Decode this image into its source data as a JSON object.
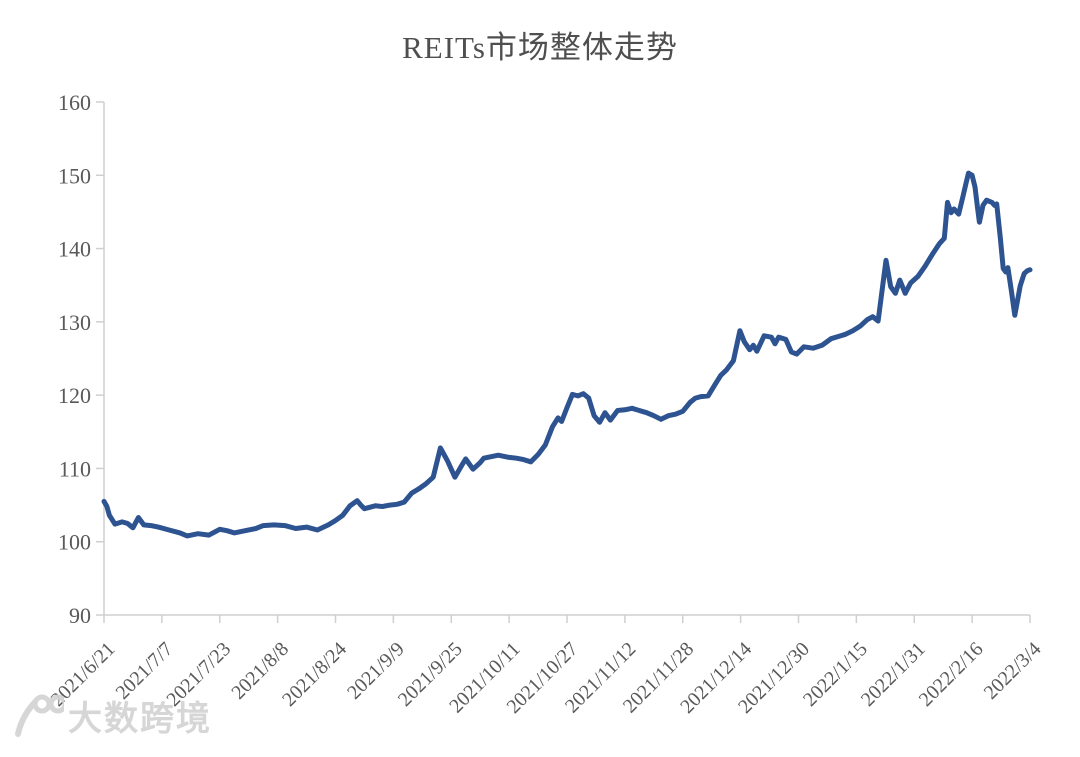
{
  "title": "REITs市场整体走势",
  "watermark": {
    "logo": "100-logo",
    "text": "大数跨境"
  },
  "colors": {
    "line": "#2d5391",
    "axis": "#cfcfcf",
    "tick_label": "#595959",
    "title": "#4f4f4f",
    "watermark": "#d4d4d4"
  },
  "chart_data": {
    "type": "line",
    "title": "REITs市场整体走势",
    "xlabel": "",
    "ylabel": "",
    "grid": false,
    "legend": null,
    "ylim": [
      90,
      160
    ],
    "y_ticks": [
      90,
      100,
      110,
      120,
      130,
      140,
      150,
      160
    ],
    "x_domain_days": [
      0,
      256
    ],
    "x_ticks": [
      {
        "day": 0,
        "label": "2021/6/21"
      },
      {
        "day": 16,
        "label": "2021/7/7"
      },
      {
        "day": 32,
        "label": "2021/7/23"
      },
      {
        "day": 48,
        "label": "2021/8/8"
      },
      {
        "day": 64,
        "label": "2021/8/24"
      },
      {
        "day": 80,
        "label": "2021/9/9"
      },
      {
        "day": 96,
        "label": "2021/9/25"
      },
      {
        "day": 112,
        "label": "2021/10/11"
      },
      {
        "day": 128,
        "label": "2021/10/27"
      },
      {
        "day": 144,
        "label": "2021/11/12"
      },
      {
        "day": 160,
        "label": "2021/11/28"
      },
      {
        "day": 176,
        "label": "2021/12/14"
      },
      {
        "day": 192,
        "label": "2021/12/30"
      },
      {
        "day": 208,
        "label": "2022/1/15"
      },
      {
        "day": 224,
        "label": "2022/1/31"
      },
      {
        "day": 240,
        "label": "2022/2/16"
      },
      {
        "day": 256,
        "label": "2022/3/4"
      }
    ],
    "series": [
      {
        "points": [
          [
            0,
            105.5
          ],
          [
            0.8,
            104.8
          ],
          [
            1.5,
            103.6
          ],
          [
            3,
            102.4
          ],
          [
            5,
            102.7
          ],
          [
            6.5,
            102.5
          ],
          [
            8,
            101.9
          ],
          [
            9.5,
            103.3
          ],
          [
            11,
            102.3
          ],
          [
            13,
            102.2
          ],
          [
            15,
            102.0
          ],
          [
            18,
            101.6
          ],
          [
            21,
            101.2
          ],
          [
            23,
            100.8
          ],
          [
            26,
            101.1
          ],
          [
            29,
            100.9
          ],
          [
            32,
            101.7
          ],
          [
            34,
            101.5
          ],
          [
            36,
            101.2
          ],
          [
            39,
            101.5
          ],
          [
            42,
            101.8
          ],
          [
            44,
            102.2
          ],
          [
            47,
            102.3
          ],
          [
            50,
            102.2
          ],
          [
            53,
            101.8
          ],
          [
            56,
            102.0
          ],
          [
            59,
            101.6
          ],
          [
            62,
            102.3
          ],
          [
            64,
            102.9
          ],
          [
            66,
            103.6
          ],
          [
            68,
            104.9
          ],
          [
            70,
            105.6
          ],
          [
            71,
            105.0
          ],
          [
            72,
            104.5
          ],
          [
            75,
            104.9
          ],
          [
            77,
            104.8
          ],
          [
            79,
            105.0
          ],
          [
            81,
            105.1
          ],
          [
            83,
            105.4
          ],
          [
            85,
            106.6
          ],
          [
            87,
            107.2
          ],
          [
            89,
            107.9
          ],
          [
            91,
            108.8
          ],
          [
            93,
            112.8
          ],
          [
            94,
            111.9
          ],
          [
            95,
            111.0
          ],
          [
            97,
            108.8
          ],
          [
            99,
            110.5
          ],
          [
            100,
            111.3
          ],
          [
            101,
            110.6
          ],
          [
            102,
            109.9
          ],
          [
            104,
            110.8
          ],
          [
            105,
            111.4
          ],
          [
            107,
            111.6
          ],
          [
            109,
            111.8
          ],
          [
            112,
            111.5
          ],
          [
            114,
            111.4
          ],
          [
            116,
            111.2
          ],
          [
            118,
            110.9
          ],
          [
            120,
            111.9
          ],
          [
            122,
            113.2
          ],
          [
            124,
            115.7
          ],
          [
            125.5,
            116.9
          ],
          [
            126.5,
            116.4
          ],
          [
            128,
            118.3
          ],
          [
            129.5,
            120.1
          ],
          [
            131,
            119.9
          ],
          [
            132.5,
            120.2
          ],
          [
            134,
            119.6
          ],
          [
            135.5,
            117.2
          ],
          [
            137,
            116.3
          ],
          [
            138.5,
            117.6
          ],
          [
            140,
            116.6
          ],
          [
            142,
            117.9
          ],
          [
            144,
            118.0
          ],
          [
            146,
            118.2
          ],
          [
            148,
            117.9
          ],
          [
            150,
            117.6
          ],
          [
            152,
            117.2
          ],
          [
            154,
            116.7
          ],
          [
            156,
            117.2
          ],
          [
            158,
            117.4
          ],
          [
            160,
            117.8
          ],
          [
            162,
            119.0
          ],
          [
            163.5,
            119.6
          ],
          [
            165,
            119.8
          ],
          [
            167,
            119.9
          ],
          [
            169,
            121.5
          ],
          [
            170.5,
            122.7
          ],
          [
            172,
            123.4
          ],
          [
            174,
            124.7
          ],
          [
            175.8,
            128.8
          ],
          [
            177,
            127.3
          ],
          [
            178.5,
            126.2
          ],
          [
            179.5,
            126.8
          ],
          [
            180.5,
            126.0
          ],
          [
            182.5,
            128.1
          ],
          [
            184.5,
            127.9
          ],
          [
            185.5,
            127.0
          ],
          [
            186.5,
            127.9
          ],
          [
            188.5,
            127.6
          ],
          [
            190,
            125.9
          ],
          [
            191.5,
            125.6
          ],
          [
            193.5,
            126.6
          ],
          [
            196,
            126.4
          ],
          [
            198.5,
            126.8
          ],
          [
            201,
            127.7
          ],
          [
            203,
            128.0
          ],
          [
            205,
            128.3
          ],
          [
            207,
            128.8
          ],
          [
            209,
            129.4
          ],
          [
            211,
            130.3
          ],
          [
            212.5,
            130.7
          ],
          [
            214,
            130.1
          ],
          [
            216.2,
            138.4
          ],
          [
            217.5,
            134.8
          ],
          [
            218.8,
            133.9
          ],
          [
            220,
            135.7
          ],
          [
            221.5,
            133.9
          ],
          [
            223,
            135.3
          ],
          [
            225,
            136.2
          ],
          [
            227,
            137.6
          ],
          [
            229,
            139.2
          ],
          [
            231,
            140.7
          ],
          [
            232.3,
            141.4
          ],
          [
            233.2,
            146.3
          ],
          [
            234.2,
            144.9
          ],
          [
            235,
            145.4
          ],
          [
            236.3,
            144.7
          ],
          [
            237.5,
            147.2
          ],
          [
            238.3,
            148.9
          ],
          [
            239,
            150.3
          ],
          [
            240,
            150.0
          ],
          [
            240.8,
            148.4
          ],
          [
            241.5,
            145.5
          ],
          [
            242,
            143.6
          ],
          [
            243,
            145.9
          ],
          [
            244,
            146.6
          ],
          [
            245.5,
            146.3
          ],
          [
            246.2,
            145.9
          ],
          [
            246.8,
            146.1
          ],
          [
            247.8,
            141.5
          ],
          [
            248.6,
            137.3
          ],
          [
            249.3,
            136.8
          ],
          [
            249.9,
            137.4
          ],
          [
            250.8,
            134.4
          ],
          [
            251.8,
            130.9
          ],
          [
            253.3,
            134.9
          ],
          [
            254.4,
            136.6
          ],
          [
            255.3,
            137.0
          ],
          [
            256,
            137.1
          ]
        ]
      }
    ]
  }
}
